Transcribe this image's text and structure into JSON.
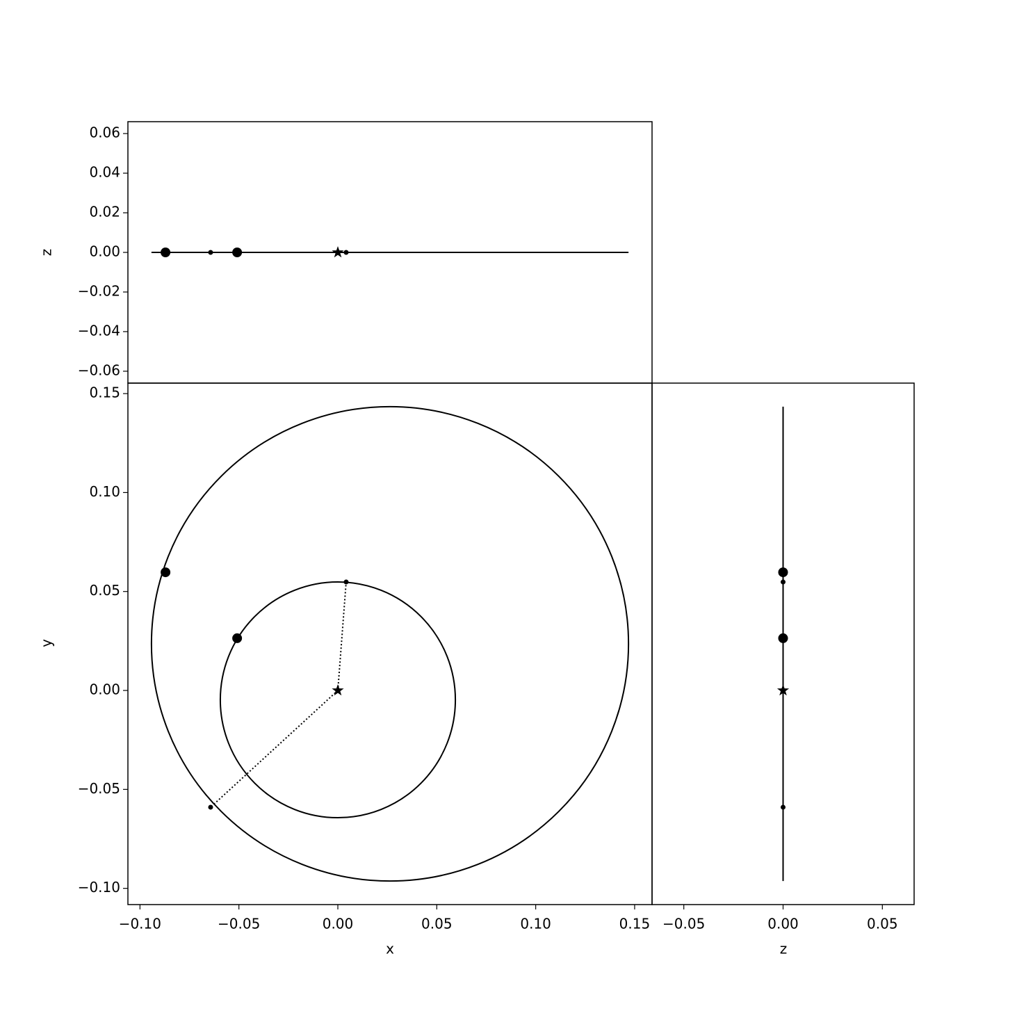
{
  "chart_data": {
    "type": "orbit",
    "xlabel": "x",
    "ylabel": "y",
    "zlabel": "z",
    "xlim": [
      -0.1061,
      0.1588
    ],
    "ylim": [
      -0.1082,
      0.1553
    ],
    "zlim": [
      -0.066,
      0.066
    ],
    "xticks": [
      {
        "value": -0.1,
        "label": "−0.10"
      },
      {
        "value": -0.05,
        "label": "−0.05"
      },
      {
        "value": 0,
        "label": "0.00"
      },
      {
        "value": 0.05,
        "label": "0.05"
      },
      {
        "value": 0.1,
        "label": "0.10"
      },
      {
        "value": 0.15,
        "label": "0.15"
      }
    ],
    "yticks": [
      {
        "value": -0.1,
        "label": "−0.10"
      },
      {
        "value": -0.05,
        "label": "−0.05"
      },
      {
        "value": 0,
        "label": "0.00"
      },
      {
        "value": 0.05,
        "label": "0.05"
      },
      {
        "value": 0.1,
        "label": "0.10"
      },
      {
        "value": 0.15,
        "label": "0.15"
      }
    ],
    "zticks": [
      {
        "value": -0.06,
        "label": "−0.06"
      },
      {
        "value": -0.04,
        "label": "−0.04"
      },
      {
        "value": -0.02,
        "label": "−0.02"
      },
      {
        "value": 0,
        "label": "0.00"
      },
      {
        "value": 0.02,
        "label": "0.02"
      },
      {
        "value": 0.04,
        "label": "0.04"
      },
      {
        "value": 0.06,
        "label": "0.06"
      }
    ],
    "zticks_side": [
      {
        "value": -0.05,
        "label": "−0.05"
      },
      {
        "value": 0,
        "label": "0.00"
      },
      {
        "value": 0.05,
        "label": "0.05"
      }
    ],
    "color": "#000000",
    "star": {
      "x": 0,
      "y": 0,
      "z": 0
    },
    "planets": {
      "x": [
        -0.0871,
        -0.0509
      ],
      "y": [
        0.0597,
        0.0264
      ],
      "z": [
        0,
        0
      ]
    },
    "periastra": {
      "x": [
        0.0042,
        -0.0643
      ],
      "y": [
        0.0548,
        -0.059
      ],
      "z": [
        0,
        0
      ]
    },
    "orbits": [
      {
        "x": [
          -0.0594,
          0.0594
        ],
        "y": [
          -0.0643,
          0.0548
        ],
        "z": 0
      },
      {
        "x": [
          -0.0942,
          0.1469
        ],
        "y": [
          -0.0963,
          0.1434
        ],
        "z": 0
      }
    ]
  }
}
